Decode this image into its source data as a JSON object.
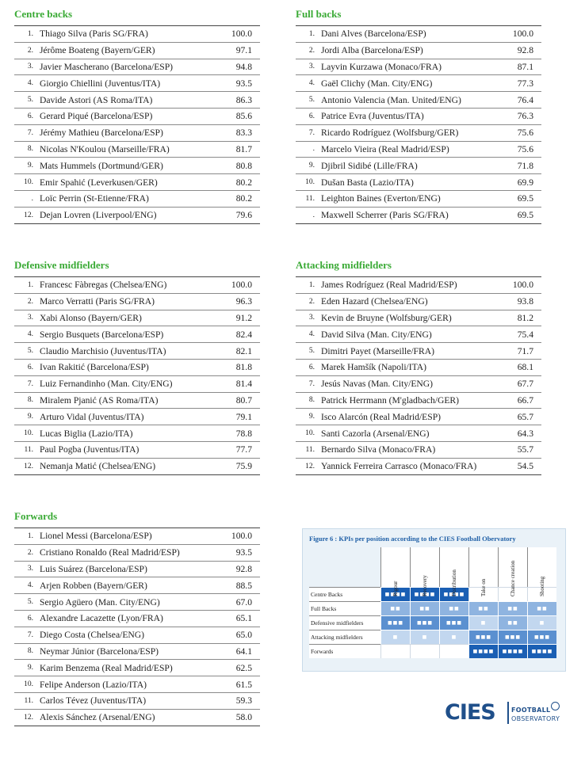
{
  "sections": [
    {
      "title": "Centre backs",
      "rows": [
        {
          "rank": "1.",
          "name": "Thiago Silva (Paris SG/FRA)",
          "score": "100.0"
        },
        {
          "rank": "2.",
          "name": "Jérôme Boateng (Bayern/GER)",
          "score": "97.1"
        },
        {
          "rank": "3.",
          "name": "Javier Mascherano (Barcelona/ESP)",
          "score": "94.8"
        },
        {
          "rank": "4.",
          "name": "Giorgio Chiellini (Juventus/ITA)",
          "score": "93.5"
        },
        {
          "rank": "5.",
          "name": "Davide Astori (AS Roma/ITA)",
          "score": "86.3"
        },
        {
          "rank": "6.",
          "name": "Gerard Piqué (Barcelona/ESP)",
          "score": "85.6"
        },
        {
          "rank": "7.",
          "name": "Jérémy Mathieu (Barcelona/ESP)",
          "score": "83.3"
        },
        {
          "rank": "8.",
          "name": "Nicolas N'Koulou (Marseille/FRA)",
          "score": "81.7"
        },
        {
          "rank": "9.",
          "name": "Mats Hummels (Dortmund/GER)",
          "score": "80.8"
        },
        {
          "rank": "10.",
          "name": "Emir Spahić (Leverkusen/GER)",
          "score": "80.2"
        },
        {
          "rank": ".",
          "name": "Loïc Perrin (St-Etienne/FRA)",
          "score": "80.2"
        },
        {
          "rank": "12.",
          "name": "Dejan Lovren (Liverpool/ENG)",
          "score": "79.6"
        }
      ]
    },
    {
      "title": "Full backs",
      "rows": [
        {
          "rank": "1.",
          "name": "Dani Alves (Barcelona/ESP)",
          "score": "100.0"
        },
        {
          "rank": "2.",
          "name": "Jordi Alba (Barcelona/ESP)",
          "score": "92.8"
        },
        {
          "rank": "3.",
          "name": "Layvin Kurzawa (Monaco/FRA)",
          "score": "87.1"
        },
        {
          "rank": "4.",
          "name": "Gaël Clichy (Man. City/ENG)",
          "score": "77.3"
        },
        {
          "rank": "5.",
          "name": "Antonio Valencia (Man. United/ENG)",
          "score": "76.4"
        },
        {
          "rank": "6.",
          "name": "Patrice Evra (Juventus/ITA)",
          "score": "76.3"
        },
        {
          "rank": "7.",
          "name": "Ricardo Rodríguez (Wolfsburg/GER)",
          "score": "75.6"
        },
        {
          "rank": ".",
          "name": "Marcelo Vieira (Real Madrid/ESP)",
          "score": "75.6"
        },
        {
          "rank": "9.",
          "name": "Djibril Sidibé (Lille/FRA)",
          "score": "71.8"
        },
        {
          "rank": "10.",
          "name": "Dušan Basta (Lazio/ITA)",
          "score": "69.9"
        },
        {
          "rank": "11.",
          "name": "Leighton Baines (Everton/ENG)",
          "score": "69.5"
        },
        {
          "rank": ".",
          "name": "Maxwell Scherrer (Paris SG/FRA)",
          "score": "69.5"
        }
      ]
    },
    {
      "title": "Defensive midfielders",
      "rows": [
        {
          "rank": "1.",
          "name": "Francesc Fàbregas (Chelsea/ENG)",
          "score": "100.0"
        },
        {
          "rank": "2.",
          "name": "Marco Verratti (Paris SG/FRA)",
          "score": "96.3"
        },
        {
          "rank": "3.",
          "name": "Xabi Alonso (Bayern/GER)",
          "score": "91.2"
        },
        {
          "rank": "4.",
          "name": "Sergio Busquets (Barcelona/ESP)",
          "score": "82.4"
        },
        {
          "rank": "5.",
          "name": "Claudio Marchisio (Juventus/ITA)",
          "score": "82.1"
        },
        {
          "rank": "6.",
          "name": "Ivan Rakitić (Barcelona/ESP)",
          "score": "81.8"
        },
        {
          "rank": "7.",
          "name": "Luiz Fernandinho (Man. City/ENG)",
          "score": "81.4"
        },
        {
          "rank": "8.",
          "name": "Miralem Pjanić (AS Roma/ITA)",
          "score": "80.7"
        },
        {
          "rank": "9.",
          "name": "Arturo Vidal (Juventus/ITA)",
          "score": "79.1"
        },
        {
          "rank": "10.",
          "name": "Lucas Biglia (Lazio/ITA)",
          "score": "78.8"
        },
        {
          "rank": "11.",
          "name": "Paul Pogba (Juventus/ITA)",
          "score": "77.7"
        },
        {
          "rank": "12.",
          "name": "Nemanja Matić (Chelsea/ENG)",
          "score": "75.9"
        }
      ]
    },
    {
      "title": "Attacking midfielders",
      "rows": [
        {
          "rank": "1.",
          "name": "James Rodríguez (Real Madrid/ESP)",
          "score": "100.0"
        },
        {
          "rank": "2.",
          "name": "Eden Hazard (Chelsea/ENG)",
          "score": "93.8"
        },
        {
          "rank": "3.",
          "name": "Kevin de Bruyne (Wolfsburg/GER)",
          "score": "81.2"
        },
        {
          "rank": "4.",
          "name": "David Silva (Man. City/ENG)",
          "score": "75.4"
        },
        {
          "rank": "5.",
          "name": "Dimitri Payet (Marseille/FRA)",
          "score": "71.7"
        },
        {
          "rank": "6.",
          "name": "Marek Hamšík (Napoli/ITA)",
          "score": "68.1"
        },
        {
          "rank": "7.",
          "name": "Jesús Navas (Man. City/ENG)",
          "score": "67.7"
        },
        {
          "rank": "8.",
          "name": "Patrick Herrmann (M'gladbach/GER)",
          "score": "66.7"
        },
        {
          "rank": "9.",
          "name": "Isco Alarcón (Real Madrid/ESP)",
          "score": "65.7"
        },
        {
          "rank": "10.",
          "name": "Santi Cazorla (Arsenal/ENG)",
          "score": "64.3"
        },
        {
          "rank": "11.",
          "name": "Bernardo Silva (Monaco/FRA)",
          "score": "55.7"
        },
        {
          "rank": "12.",
          "name": "Yannick Ferreira Carrasco (Monaco/FRA)",
          "score": "54.5"
        }
      ]
    },
    {
      "title": "Forwards",
      "rows": [
        {
          "rank": "1.",
          "name": "Lionel Messi (Barcelona/ESP)",
          "score": "100.0"
        },
        {
          "rank": "2.",
          "name": "Cristiano Ronaldo (Real Madrid/ESP)",
          "score": "93.5"
        },
        {
          "rank": "3.",
          "name": "Luis Suárez (Barcelona/ESP)",
          "score": "92.8"
        },
        {
          "rank": "4.",
          "name": "Arjen Robben (Bayern/GER)",
          "score": "88.5"
        },
        {
          "rank": "5.",
          "name": "Sergio Agüero (Man. City/ENG)",
          "score": "67.0"
        },
        {
          "rank": "6.",
          "name": "Alexandre Lacazette (Lyon/FRA)",
          "score": "65.1"
        },
        {
          "rank": "7.",
          "name": "Diego Costa (Chelsea/ENG)",
          "score": "65.0"
        },
        {
          "rank": "8.",
          "name": "Neymar Júnior (Barcelona/ESP)",
          "score": "64.1"
        },
        {
          "rank": "9.",
          "name": "Karim Benzema (Real Madrid/ESP)",
          "score": "62.5"
        },
        {
          "rank": "10.",
          "name": "Felipe Anderson (Lazio/ITA)",
          "score": "61.5"
        },
        {
          "rank": "11.",
          "name": "Carlos Tévez (Juventus/ITA)",
          "score": "59.3"
        },
        {
          "rank": "12.",
          "name": "Alexis Sánchez (Arsenal/ENG)",
          "score": "58.0"
        }
      ]
    }
  ],
  "figure": {
    "title": "Figure 6 :  KPIs per position according to the CIES Football Obervatory",
    "columns": [
      "Rigour",
      "Recovery",
      "Distribution",
      "Take on",
      "Chance creation",
      "Shooting"
    ],
    "rows": [
      {
        "label": "Centre Backs",
        "levels": [
          4,
          4,
          4,
          0,
          0,
          0
        ]
      },
      {
        "label": "Full Backs",
        "levels": [
          2,
          2,
          2,
          2,
          2,
          2
        ]
      },
      {
        "label": "Defensive midfielders",
        "levels": [
          3,
          3,
          3,
          1,
          2,
          1
        ]
      },
      {
        "label": "Attacking midfielders",
        "levels": [
          1,
          1,
          1,
          3,
          3,
          3
        ]
      },
      {
        "label": "Forwards",
        "levels": [
          0,
          0,
          0,
          4,
          4,
          4
        ]
      }
    ],
    "level_colors": [
      "#ffffff",
      "#c2d7ef",
      "#8fb4e0",
      "#5b90d0",
      "#1a5fb4"
    ]
  },
  "logo": {
    "mark": "CIES",
    "line1": "FOOTBALL",
    "line2": "OBSERVATORY"
  }
}
